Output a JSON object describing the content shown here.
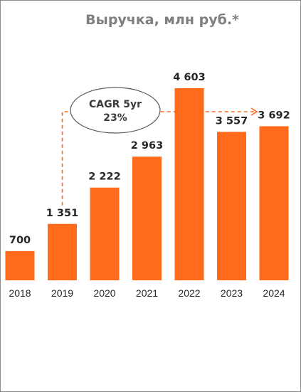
{
  "chart_data": {
    "type": "bar",
    "title": "Выручка, млн руб.*",
    "categories": [
      "2018",
      "2019",
      "2020",
      "2021",
      "2022",
      "2023",
      "2024"
    ],
    "values": [
      700,
      1351,
      2222,
      2963,
      4603,
      3557,
      3692
    ],
    "value_labels": [
      "700",
      "1 351",
      "2 222",
      "2 963",
      "4 603",
      "3 557",
      "3 692"
    ],
    "bar_color": "#ff6b1a",
    "ylim": [
      0,
      4603
    ],
    "grid": false,
    "annotation": {
      "line1": "CAGR 5yr",
      "line2": "23%",
      "from_category": "2019",
      "to_category": "2024",
      "style": "dashed arrow",
      "color": "#ff6b1a"
    }
  }
}
